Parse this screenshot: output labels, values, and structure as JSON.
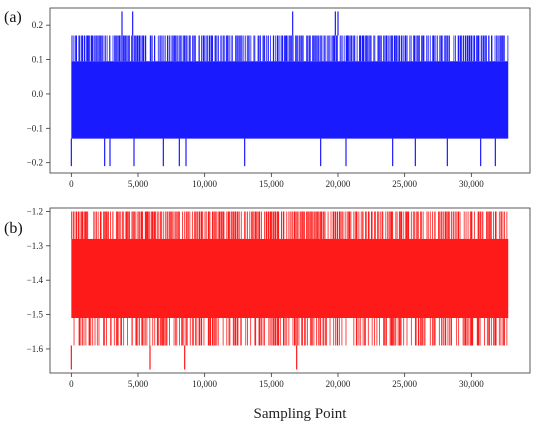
{
  "figure": {
    "panel_a_label": "(a)",
    "panel_b_label": "(b)",
    "shared_xlabel": "Sampling Point"
  },
  "chart_data": [
    {
      "type": "line",
      "panel": "(a)",
      "color": "#1a1aff",
      "x_range": [
        0,
        32768
      ],
      "xlim": [
        -1600,
        34400
      ],
      "ylim": [
        -0.23,
        0.25
      ],
      "x_ticks": [
        0,
        5000,
        10000,
        15000,
        20000,
        25000,
        30000
      ],
      "x_tick_labels": [
        "0",
        "5,000",
        "10,000",
        "15,000",
        "20,000",
        "25,000",
        "30,000"
      ],
      "y_ticks": [
        0.2,
        0.1,
        0.0,
        -0.1,
        -0.2
      ],
      "y_tick_labels": [
        "0.2",
        "0.1",
        "0.0",
        "−0.1",
        "−0.2"
      ],
      "band": {
        "low": -0.13,
        "high": 0.095
      },
      "upper_level": 0.17,
      "lower_level": -0.13,
      "spikes": [
        {
          "x": 3800,
          "y": 0.24
        },
        {
          "x": 4600,
          "y": 0.24
        },
        {
          "x": 16600,
          "y": 0.24
        },
        {
          "x": 19800,
          "y": 0.24
        },
        {
          "x": 20000,
          "y": 0.24
        },
        {
          "x": 0,
          "y": -0.21
        },
        {
          "x": 2500,
          "y": -0.21
        },
        {
          "x": 2900,
          "y": -0.21
        },
        {
          "x": 4700,
          "y": -0.21
        },
        {
          "x": 6900,
          "y": -0.21
        },
        {
          "x": 8100,
          "y": -0.21
        },
        {
          "x": 8600,
          "y": -0.21
        },
        {
          "x": 13000,
          "y": -0.21
        },
        {
          "x": 18700,
          "y": -0.21
        },
        {
          "x": 20600,
          "y": -0.21
        },
        {
          "x": 24100,
          "y": -0.21
        },
        {
          "x": 25800,
          "y": -0.21
        },
        {
          "x": 28200,
          "y": -0.21
        },
        {
          "x": 30700,
          "y": -0.21
        },
        {
          "x": 31800,
          "y": -0.21
        }
      ]
    },
    {
      "type": "line",
      "panel": "(b)",
      "color": "#ff1a1a",
      "x_range": [
        0,
        32768
      ],
      "xlim": [
        -1600,
        34400
      ],
      "ylim": [
        -1.67,
        -1.19
      ],
      "x_ticks": [
        0,
        5000,
        10000,
        15000,
        20000,
        25000,
        30000
      ],
      "x_tick_labels": [
        "0",
        "5,000",
        "10,000",
        "15,000",
        "20,000",
        "25,000",
        "30,000"
      ],
      "y_ticks": [
        -1.2,
        -1.3,
        -1.4,
        -1.5,
        -1.6
      ],
      "y_tick_labels": [
        "−1.2",
        "−1.3",
        "−1.4",
        "−1.5",
        "−1.6"
      ],
      "band": {
        "low": -1.51,
        "high": -1.28
      },
      "upper_level": -1.2,
      "lower_level": -1.59,
      "spikes": [
        {
          "x": 0,
          "y": -1.66
        },
        {
          "x": 5900,
          "y": -1.66
        },
        {
          "x": 8500,
          "y": -1.66
        },
        {
          "x": 16900,
          "y": -1.66
        },
        {
          "x": 32200,
          "y": -1.2
        },
        {
          "x": 32400,
          "y": -1.2
        },
        {
          "x": 32600,
          "y": -1.2
        }
      ]
    }
  ]
}
